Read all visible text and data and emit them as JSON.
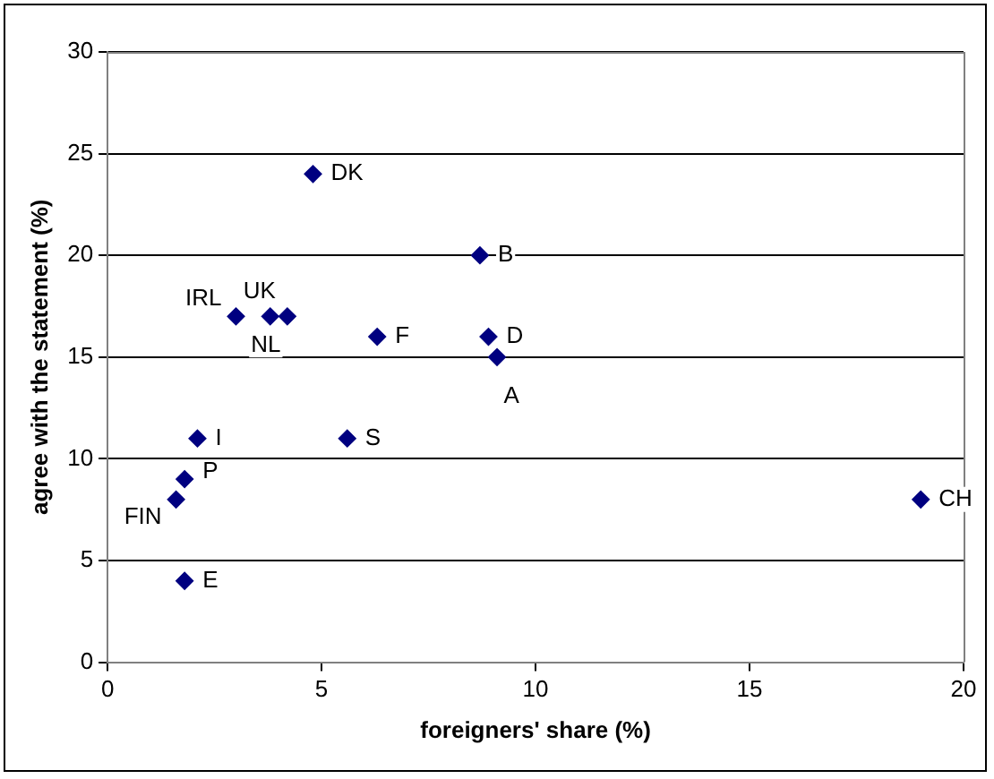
{
  "chart_data": {
    "type": "scatter",
    "xlabel": "foreigners' share (%)",
    "ylabel": "agree with the statement (%)",
    "x": [
      4.8,
      8.7,
      3.0,
      3.8,
      4.2,
      6.3,
      8.9,
      9.1,
      5.6,
      2.1,
      1.8,
      1.6,
      1.8,
      19.0
    ],
    "series": [
      {
        "color": "#000080",
        "values": [
          24,
          20,
          17,
          17,
          17,
          16,
          16,
          15,
          11,
          11,
          9,
          8,
          4,
          8
        ]
      }
    ],
    "xlim": [
      0,
      20
    ],
    "xticks": [
      0,
      5,
      10,
      15,
      20
    ],
    "ylim": [
      0,
      30
    ],
    "yticks": [
      0,
      5,
      10,
      15,
      20,
      25,
      30
    ],
    "grid": "y",
    "legend": false,
    "marker": "diamond",
    "annotations": [
      {
        "text": "DK",
        "x": 4.8,
        "y": 24
      },
      {
        "text": "B",
        "x": 8.7,
        "y": 20
      },
      {
        "text": "IRL",
        "x": 3.0,
        "y": 17
      },
      {
        "text": "UK",
        "x": 3.8,
        "y": 17
      },
      {
        "text": "NL",
        "x": 4.2,
        "y": 17
      },
      {
        "text": "F",
        "x": 6.3,
        "y": 16
      },
      {
        "text": "D",
        "x": 8.9,
        "y": 16
      },
      {
        "text": "A",
        "x": 9.1,
        "y": 15
      },
      {
        "text": "S",
        "x": 5.6,
        "y": 11
      },
      {
        "text": "I",
        "x": 2.1,
        "y": 11
      },
      {
        "text": "P",
        "x": 1.8,
        "y": 9
      },
      {
        "text": "FIN",
        "x": 1.6,
        "y": 8
      },
      {
        "text": "E",
        "x": 1.8,
        "y": 4
      },
      {
        "text": "CH",
        "x": 19.0,
        "y": 8
      }
    ]
  }
}
